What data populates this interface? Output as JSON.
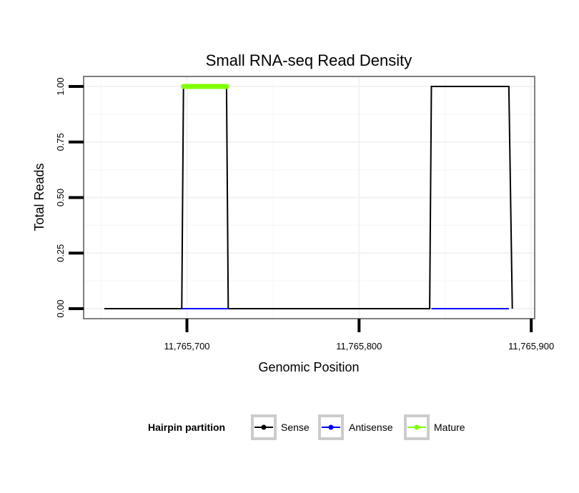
{
  "chart_data": {
    "type": "line",
    "title": "Small RNA-seq Read Density",
    "xlabel": "Genomic Position",
    "ylabel": "Total Reads",
    "xlim": [
      11765640,
      11765902
    ],
    "ylim": [
      -0.045,
      1.045
    ],
    "x_ticks": [
      11765700,
      11765800,
      11765900
    ],
    "x_tick_labels": [
      "11,765,700",
      "11,765,800",
      "11,765,900"
    ],
    "y_ticks": [
      0,
      0.25,
      0.5,
      0.75,
      1.0
    ],
    "y_tick_labels": [
      "0.00",
      "0.25",
      "0.50",
      "0.75",
      "1.00"
    ],
    "grid": true,
    "legend": {
      "title": "Hairpin partition",
      "position": "bottom",
      "entries": [
        {
          "label": "Sense",
          "color": "#000000"
        },
        {
          "label": "Antisense",
          "color": "#0000ff"
        },
        {
          "label": "Mature",
          "color": "#7fff00"
        }
      ]
    },
    "series": [
      {
        "name": "Sense",
        "color": "#000000",
        "x": [
          11765652,
          11765697,
          11765698,
          11765723,
          11765724,
          11765841,
          11765842,
          11765887,
          11765889
        ],
        "y": [
          0,
          0,
          1,
          1,
          0,
          0,
          1,
          1,
          0
        ]
      },
      {
        "name": "Antisense",
        "color": "#0000ff",
        "x": [
          11765697,
          11765724,
          11765724.5,
          11765841,
          11765842,
          11765887
        ],
        "y": [
          0,
          0,
          null,
          null,
          0,
          0
        ]
      },
      {
        "name": "Mature",
        "color": "#7fff00",
        "x": [
          11765698,
          11765723
        ],
        "y": [
          1,
          1
        ]
      }
    ]
  }
}
